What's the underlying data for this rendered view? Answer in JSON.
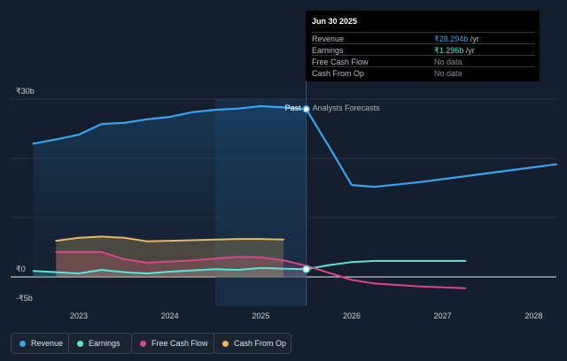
{
  "tooltip": {
    "title": "Jun 30 2025",
    "rows": [
      {
        "label": "Revenue",
        "value": "₹28.294b",
        "unit": " /yr",
        "color": "#3aa3f2"
      },
      {
        "label": "Earnings",
        "value": "₹1.296b",
        "unit": " /yr",
        "color": "#58e6db"
      },
      {
        "label": "Free Cash Flow",
        "value": "No data",
        "unit": "",
        "color": "#8a9099"
      },
      {
        "label": "Cash From Op",
        "value": "No data",
        "unit": "",
        "color": "#8a9099"
      }
    ]
  },
  "labels": {
    "past": "Past",
    "forecast": "Analysts Forecasts"
  },
  "legend": [
    {
      "label": "Revenue",
      "color": "#3aa3f2"
    },
    {
      "label": "Earnings",
      "color": "#58e6db"
    },
    {
      "label": "Free Cash Flow",
      "color": "#d9468a"
    },
    {
      "label": "Cash From Op",
      "color": "#e9b765"
    }
  ],
  "chart_data": {
    "type": "line",
    "title": "",
    "xlabel": "",
    "ylabel": "",
    "x_ticks": [
      "2023",
      "2024",
      "2025",
      "2026",
      "2027",
      "2028"
    ],
    "y_ticks": [
      {
        "value": 30,
        "label": "₹30b"
      },
      {
        "value": 0,
        "label": "₹0"
      },
      {
        "value": -5,
        "label": "-₹5b"
      }
    ],
    "ylim": [
      -5,
      30
    ],
    "xlim": [
      2022.25,
      2028.25
    ],
    "past_end": 2025.5,
    "highlight_start": 2024.5,
    "grid": true,
    "series": [
      {
        "name": "Revenue",
        "color": "#3aa3f2",
        "fill": true,
        "points": [
          [
            2022.5,
            22.5
          ],
          [
            2022.75,
            23.2
          ],
          [
            2023.0,
            24.0
          ],
          [
            2023.25,
            25.8
          ],
          [
            2023.5,
            26.0
          ],
          [
            2023.75,
            26.6
          ],
          [
            2024.0,
            27.0
          ],
          [
            2024.25,
            27.8
          ],
          [
            2024.5,
            28.2
          ],
          [
            2024.75,
            28.4
          ],
          [
            2025.0,
            28.8
          ],
          [
            2025.25,
            28.6
          ],
          [
            2025.5,
            28.294
          ],
          [
            2025.75,
            22.0
          ],
          [
            2026.0,
            15.5
          ],
          [
            2026.25,
            15.2
          ],
          [
            2026.75,
            16.0
          ],
          [
            2027.25,
            17.0
          ],
          [
            2027.75,
            18.0
          ],
          [
            2028.25,
            19.0
          ]
        ]
      },
      {
        "name": "Earnings",
        "color": "#58e6db",
        "fill": true,
        "points": [
          [
            2022.5,
            1.0
          ],
          [
            2022.75,
            0.8
          ],
          [
            2023.0,
            0.6
          ],
          [
            2023.25,
            1.2
          ],
          [
            2023.5,
            0.8
          ],
          [
            2023.75,
            0.6
          ],
          [
            2024.0,
            0.9
          ],
          [
            2024.25,
            1.1
          ],
          [
            2024.5,
            1.3
          ],
          [
            2024.75,
            1.2
          ],
          [
            2025.0,
            1.5
          ],
          [
            2025.25,
            1.4
          ],
          [
            2025.5,
            1.296
          ],
          [
            2025.75,
            2.0
          ],
          [
            2026.0,
            2.5
          ],
          [
            2026.25,
            2.7
          ],
          [
            2026.75,
            2.7
          ],
          [
            2027.25,
            2.7
          ]
        ]
      },
      {
        "name": "Free Cash Flow",
        "color": "#d9468a",
        "fill": true,
        "points": [
          [
            2022.75,
            4.2
          ],
          [
            2023.0,
            4.2
          ],
          [
            2023.25,
            4.2
          ],
          [
            2023.5,
            3.0
          ],
          [
            2023.75,
            2.4
          ],
          [
            2024.0,
            2.6
          ],
          [
            2024.25,
            2.8
          ],
          [
            2024.5,
            3.1
          ],
          [
            2024.75,
            3.4
          ],
          [
            2025.0,
            3.3
          ],
          [
            2025.25,
            2.8
          ],
          [
            2025.5,
            1.9
          ],
          [
            2025.75,
            0.7
          ],
          [
            2026.0,
            -0.5
          ],
          [
            2026.25,
            -1.1
          ],
          [
            2026.75,
            -1.6
          ],
          [
            2027.25,
            -1.9
          ]
        ]
      },
      {
        "name": "Cash From Op",
        "color": "#e9b765",
        "fill": true,
        "points": [
          [
            2022.75,
            6.1
          ],
          [
            2023.0,
            6.6
          ],
          [
            2023.25,
            6.8
          ],
          [
            2023.5,
            6.6
          ],
          [
            2023.75,
            6.0
          ],
          [
            2024.0,
            6.1
          ],
          [
            2024.25,
            6.2
          ],
          [
            2024.5,
            6.3
          ],
          [
            2024.75,
            6.4
          ],
          [
            2025.0,
            6.4
          ],
          [
            2025.25,
            6.3
          ]
        ]
      }
    ]
  }
}
